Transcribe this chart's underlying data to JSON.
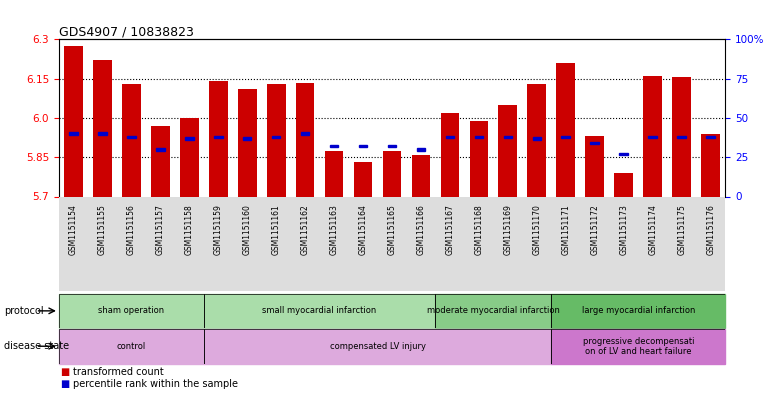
{
  "title": "GDS4907 / 10838823",
  "samples": [
    "GSM1151154",
    "GSM1151155",
    "GSM1151156",
    "GSM1151157",
    "GSM1151158",
    "GSM1151159",
    "GSM1151160",
    "GSM1151161",
    "GSM1151162",
    "GSM1151163",
    "GSM1151164",
    "GSM1151165",
    "GSM1151166",
    "GSM1151167",
    "GSM1151168",
    "GSM1151169",
    "GSM1151170",
    "GSM1151171",
    "GSM1151172",
    "GSM1151173",
    "GSM1151174",
    "GSM1151175",
    "GSM1151176"
  ],
  "bar_values": [
    6.275,
    6.22,
    6.13,
    5.97,
    6.0,
    6.14,
    6.11,
    6.13,
    6.135,
    5.875,
    5.83,
    5.875,
    5.86,
    6.02,
    5.99,
    6.05,
    6.13,
    6.21,
    5.93,
    5.79,
    6.16,
    6.155,
    5.94
  ],
  "percentile_values": [
    40,
    40,
    38,
    30,
    37,
    38,
    37,
    38,
    40,
    32,
    32,
    32,
    30,
    38,
    38,
    38,
    37,
    38,
    34,
    27,
    38,
    38,
    38
  ],
  "y_min": 5.7,
  "y_max": 6.3,
  "y_ticks_left": [
    5.7,
    5.85,
    6.0,
    6.15,
    6.3
  ],
  "y_ticks_right_vals": [
    0,
    25,
    50,
    75,
    100
  ],
  "y_ticks_right_labels": [
    "0",
    "25",
    "50",
    "75",
    "100%"
  ],
  "bar_color": "#cc0000",
  "percentile_color": "#0000cc",
  "prot_groups": [
    {
      "label": "sham operation",
      "start": 0,
      "end": 5,
      "color": "#aaddaa"
    },
    {
      "label": "small myocardial infarction",
      "start": 5,
      "end": 13,
      "color": "#aaddaa"
    },
    {
      "label": "moderate myocardial infarction",
      "start": 13,
      "end": 17,
      "color": "#88cc88"
    },
    {
      "label": "large myocardial infarction",
      "start": 17,
      "end": 23,
      "color": "#66bb66"
    }
  ],
  "dis_groups": [
    {
      "label": "control",
      "start": 0,
      "end": 5,
      "color": "#ddaadd"
    },
    {
      "label": "compensated LV injury",
      "start": 5,
      "end": 17,
      "color": "#ddaadd"
    },
    {
      "label": "progressive decompensati\non of LV and heart failure",
      "start": 17,
      "end": 23,
      "color": "#cc77cc"
    }
  ]
}
